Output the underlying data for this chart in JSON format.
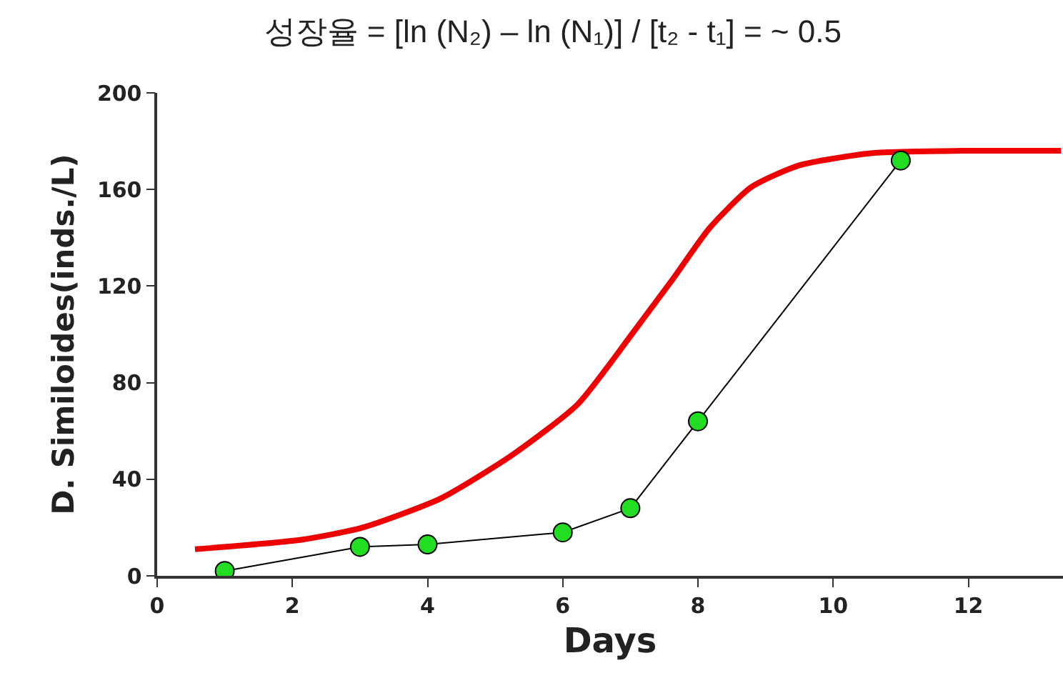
{
  "chart_data": {
    "type": "line",
    "title": "성장율 = [ln (N₂) – ln (N₁)] / [t₂ - t₁] = ~ 0.5",
    "xlabel": "Days",
    "ylabel": "D. Similoides(inds./L)",
    "series": [
      {
        "color": "#ee0000",
        "marker": "none",
        "x": [
          0.56,
          2.15,
          3.04,
          4.19,
          5.25,
          6.22,
          7.02,
          7.63,
          8.17,
          8.79,
          9.5,
          10.56,
          11.9,
          13.37
        ],
        "values": [
          11,
          15,
          20,
          32,
          50,
          71,
          100,
          123,
          144,
          161,
          170,
          175,
          176,
          176
        ]
      },
      {
        "color": "#22dd22",
        "marker": "circle",
        "x": [
          1,
          3,
          4,
          6,
          7,
          8,
          11
        ],
        "values": [
          2,
          12,
          13,
          18,
          28,
          64,
          172
        ]
      }
    ],
    "xlim": [
      0,
      13.4
    ],
    "xticks": [
      0,
      2,
      4,
      6,
      8,
      10,
      12
    ],
    "ylim": [
      0,
      200
    ],
    "yticks": [
      0,
      40,
      80,
      120,
      160,
      200
    ],
    "grid": false
  }
}
